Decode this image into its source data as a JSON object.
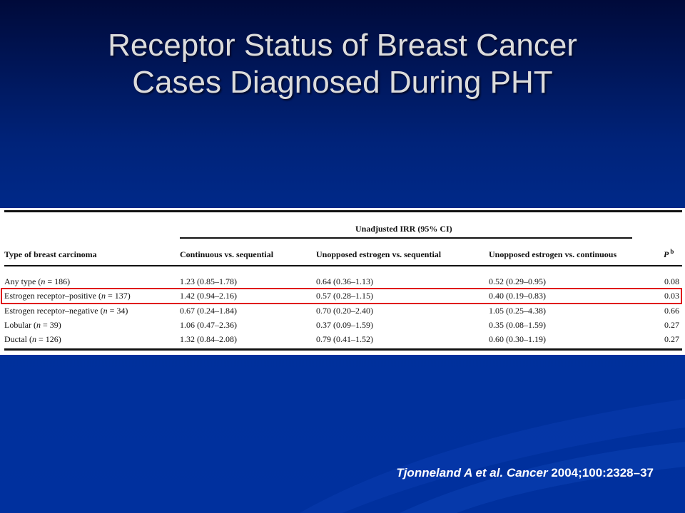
{
  "slide": {
    "title_line1": "Receptor Status of Breast Cancer",
    "title_line2": "Cases Diagnosed During PHT"
  },
  "table": {
    "group_header": "Unadjusted IRR (95% CI)",
    "columns": [
      "Type of breast carcinoma",
      "Continuous vs. sequential",
      "Unopposed estrogen vs. sequential",
      "Unopposed estrogen vs. continuous",
      "P",
      "b"
    ],
    "rows": [
      {
        "type_a": "Any type (",
        "n": "n",
        "type_b": " = 186)",
        "c1": "1.23 (0.85–1.78)",
        "c2": "0.64 (0.36–1.13)",
        "c3": "0.52 (0.29–0.95)",
        "p": "0.08"
      },
      {
        "type_a": "Estrogen receptor–positive (",
        "n": "n",
        "type_b": " = 137)",
        "c1": "1.42 (0.94–2.16)",
        "c2": "0.57 (0.28–1.15)",
        "c3": "0.40 (0.19–0.83)",
        "p": "0.03"
      },
      {
        "type_a": "Estrogen receptor–negative (",
        "n": "n",
        "type_b": " = 34)",
        "c1": "0.67 (0.24–1.84)",
        "c2": "0.70 (0.20–2.40)",
        "c3": "1.05 (0.25–4.38)",
        "p": "0.66"
      },
      {
        "type_a": "Lobular (",
        "n": "n",
        "type_b": " = 39)",
        "c1": "1.06 (0.47–2.36)",
        "c2": "0.37 (0.09–1.59)",
        "c3": "0.35 (0.08–1.59)",
        "p": "0.27"
      },
      {
        "type_a": "Ductal (",
        "n": "n",
        "type_b": " = 126)",
        "c1": "1.32 (0.84–2.08)",
        "c2": "0.79 (0.41–1.52)",
        "c3": "0.60 (0.30–1.19)",
        "p": "0.27"
      }
    ],
    "highlight_color": "#e0141a"
  },
  "citation": {
    "authors": "Tjonneland A et al.",
    "journal": "Cancer",
    "ref": "2004;100:2328–37"
  }
}
